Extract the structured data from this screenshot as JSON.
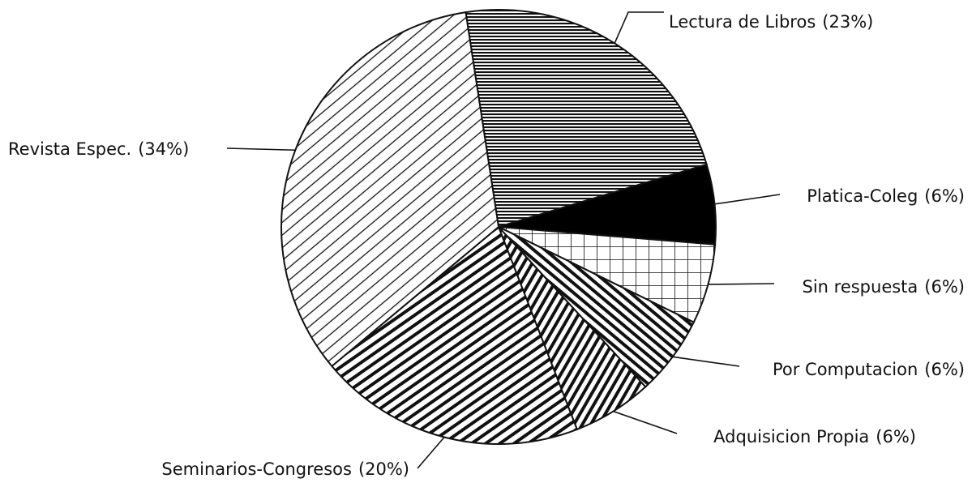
{
  "chart_data": {
    "type": "pie",
    "categories": [
      "Lectura de Libros",
      "Platica-Coleg",
      "Sin respuesta",
      "Por Computacion",
      "Adquisicion Propia",
      "Seminarios-Congresos",
      "Revista Espec."
    ],
    "values": [
      23,
      6,
      6,
      6,
      6,
      20,
      34
    ],
    "value_labels": [
      "(23%)",
      "(6%)",
      "(6%)",
      "(6%)",
      "(6%)",
      "(20%)",
      "(34%)"
    ]
  }
}
